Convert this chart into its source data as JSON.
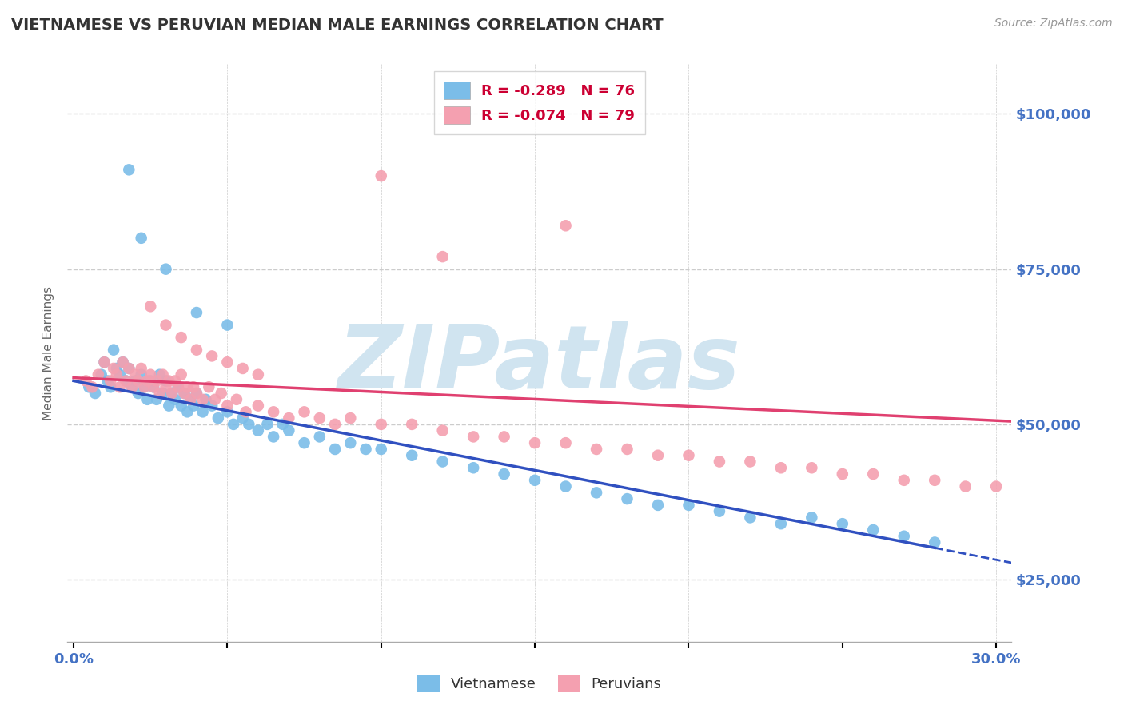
{
  "title": "VIETNAMESE VS PERUVIAN MEDIAN MALE EARNINGS CORRELATION CHART",
  "source_text": "Source: ZipAtlas.com",
  "ylabel": "Median Male Earnings",
  "xlim": [
    -0.002,
    0.305
  ],
  "ylim": [
    15000,
    108000
  ],
  "yticks": [
    25000,
    50000,
    75000,
    100000
  ],
  "ytick_labels": [
    "$25,000",
    "$50,000",
    "$75,000",
    "$100,000"
  ],
  "xticks": [
    0.0,
    0.05,
    0.1,
    0.15,
    0.2,
    0.25,
    0.3
  ],
  "xtick_labels": [
    "0.0%",
    "",
    "",
    "",
    "",
    "",
    "30.0%"
  ],
  "viet_color": "#7bbde8",
  "peru_color": "#f4a0b0",
  "viet_line_color": "#3050c0",
  "peru_line_color": "#e04070",
  "viet_R": -0.289,
  "viet_N": 76,
  "peru_R": -0.074,
  "peru_N": 79,
  "watermark": "ZIPatlas",
  "watermark_color": "#d0e4f0",
  "background_color": "#ffffff",
  "grid_color": "#cccccc",
  "title_color": "#333333",
  "axis_label_color": "#666666",
  "tick_label_color": "#4472c4",
  "legend_R_color": "#cc0033",
  "viet_scatter_x": [
    0.005,
    0.007,
    0.009,
    0.01,
    0.011,
    0.012,
    0.013,
    0.014,
    0.015,
    0.016,
    0.017,
    0.018,
    0.019,
    0.02,
    0.021,
    0.022,
    0.023,
    0.024,
    0.025,
    0.026,
    0.027,
    0.028,
    0.029,
    0.03,
    0.031,
    0.032,
    0.033,
    0.034,
    0.035,
    0.036,
    0.037,
    0.038,
    0.039,
    0.04,
    0.042,
    0.043,
    0.045,
    0.047,
    0.05,
    0.052,
    0.055,
    0.057,
    0.06,
    0.063,
    0.065,
    0.068,
    0.07,
    0.075,
    0.08,
    0.085,
    0.09,
    0.095,
    0.1,
    0.11,
    0.12,
    0.13,
    0.14,
    0.15,
    0.16,
    0.17,
    0.18,
    0.19,
    0.2,
    0.21,
    0.22,
    0.23,
    0.24,
    0.25,
    0.26,
    0.27,
    0.28,
    0.018,
    0.022,
    0.03,
    0.04,
    0.05
  ],
  "viet_scatter_y": [
    56000,
    55000,
    58000,
    60000,
    57000,
    56000,
    62000,
    59000,
    58000,
    60000,
    57000,
    59000,
    56000,
    57000,
    55000,
    58000,
    56000,
    54000,
    57000,
    56000,
    54000,
    58000,
    55000,
    57000,
    53000,
    55000,
    54000,
    56000,
    53000,
    55000,
    52000,
    54000,
    53000,
    55000,
    52000,
    54000,
    53000,
    51000,
    52000,
    50000,
    51000,
    50000,
    49000,
    50000,
    48000,
    50000,
    49000,
    47000,
    48000,
    46000,
    47000,
    46000,
    46000,
    45000,
    44000,
    43000,
    42000,
    41000,
    40000,
    39000,
    38000,
    37000,
    37000,
    36000,
    35000,
    34000,
    35000,
    34000,
    33000,
    32000,
    31000,
    91000,
    80000,
    75000,
    68000,
    66000
  ],
  "peru_scatter_x": [
    0.004,
    0.006,
    0.008,
    0.01,
    0.012,
    0.013,
    0.014,
    0.015,
    0.016,
    0.017,
    0.018,
    0.019,
    0.02,
    0.021,
    0.022,
    0.023,
    0.024,
    0.025,
    0.026,
    0.027,
    0.028,
    0.029,
    0.03,
    0.031,
    0.032,
    0.033,
    0.034,
    0.035,
    0.036,
    0.037,
    0.038,
    0.039,
    0.04,
    0.042,
    0.044,
    0.046,
    0.048,
    0.05,
    0.053,
    0.056,
    0.06,
    0.065,
    0.07,
    0.075,
    0.08,
    0.085,
    0.09,
    0.1,
    0.11,
    0.12,
    0.13,
    0.14,
    0.15,
    0.16,
    0.17,
    0.18,
    0.19,
    0.2,
    0.21,
    0.22,
    0.23,
    0.24,
    0.25,
    0.26,
    0.27,
    0.28,
    0.29,
    0.3,
    0.025,
    0.03,
    0.035,
    0.04,
    0.045,
    0.05,
    0.055,
    0.06,
    0.1,
    0.12,
    0.16
  ],
  "peru_scatter_y": [
    57000,
    56000,
    58000,
    60000,
    57000,
    59000,
    58000,
    56000,
    60000,
    57000,
    59000,
    56000,
    58000,
    57000,
    59000,
    56000,
    57000,
    58000,
    56000,
    57000,
    55000,
    58000,
    56000,
    57000,
    55000,
    57000,
    56000,
    58000,
    55000,
    56000,
    54000,
    56000,
    55000,
    54000,
    56000,
    54000,
    55000,
    53000,
    54000,
    52000,
    53000,
    52000,
    51000,
    52000,
    51000,
    50000,
    51000,
    50000,
    50000,
    49000,
    48000,
    48000,
    47000,
    47000,
    46000,
    46000,
    45000,
    45000,
    44000,
    44000,
    43000,
    43000,
    42000,
    42000,
    41000,
    41000,
    40000,
    40000,
    69000,
    66000,
    64000,
    62000,
    61000,
    60000,
    59000,
    58000,
    90000,
    77000,
    82000
  ]
}
